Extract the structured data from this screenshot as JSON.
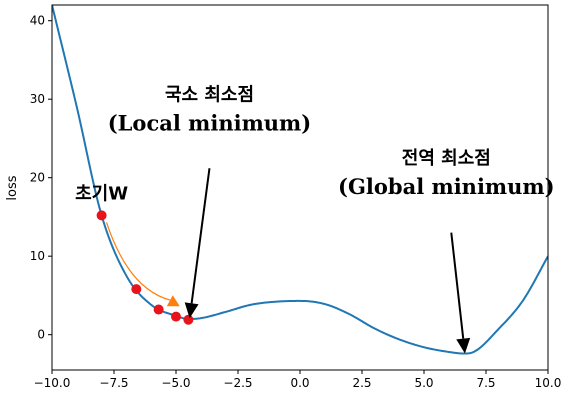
{
  "chart_data": {
    "type": "line",
    "title": "",
    "xlabel": "",
    "ylabel": "loss",
    "xlim": [
      -10,
      10
    ],
    "ylim": [
      -4.5,
      42
    ],
    "xticks": [
      -10.0,
      -7.5,
      -5.0,
      -2.5,
      0.0,
      2.5,
      5.0,
      7.5,
      10.0
    ],
    "xtick_labels": [
      "−10.0",
      "−7.5",
      "−5.0",
      "−2.5",
      "0.0",
      "2.5",
      "5.0",
      "7.5",
      "10.0"
    ],
    "yticks": [
      0,
      10,
      20,
      30,
      40
    ],
    "ytick_labels": [
      "0",
      "10",
      "20",
      "30",
      "40"
    ],
    "grid": false,
    "line_color": "#1f77b4",
    "series": [
      {
        "x": [
          -10,
          -9,
          -8,
          -7,
          -6,
          -5,
          -4.5,
          -4,
          -3,
          -2,
          -1,
          0,
          1,
          2,
          3,
          4,
          5,
          6,
          6.6,
          7,
          8,
          9,
          10
        ],
        "values": [
          42.0,
          29.0,
          15.2,
          7.5,
          3.8,
          2.4,
          2.0,
          2.1,
          2.9,
          3.8,
          4.2,
          4.3,
          3.9,
          2.6,
          0.8,
          -0.6,
          -1.6,
          -2.2,
          -2.4,
          -2.2,
          0.7,
          4.4,
          10.0
        ]
      }
    ],
    "points": {
      "color": "#e8141c",
      "x": [
        -8.0,
        -6.6,
        -5.7,
        -5.0,
        -4.5
      ],
      "y": [
        15.2,
        5.8,
        3.2,
        2.3,
        1.9
      ]
    },
    "arrow_path": {
      "color": "#ff7f0e",
      "from": [
        -7.8,
        14.3
      ],
      "to": [
        -5.05,
        4.0
      ]
    },
    "annotations": [
      {
        "line1": "국소 최소점",
        "line2": "(Local minimum)",
        "text_x": -3.65,
        "text_y": 26.5,
        "arrow_from": [
          -3.65,
          21.2
        ],
        "arrow_to": [
          -4.45,
          2.1
        ]
      },
      {
        "line1": "전역 최소점",
        "line2": "(Global minimum)",
        "text_x": 5.9,
        "text_y": 18.4,
        "arrow_from": [
          6.1,
          13.0
        ],
        "arrow_to": [
          6.65,
          -2.4
        ]
      }
    ],
    "point_label": {
      "text": "초기W",
      "x": -8.0,
      "y": 17.2
    }
  }
}
